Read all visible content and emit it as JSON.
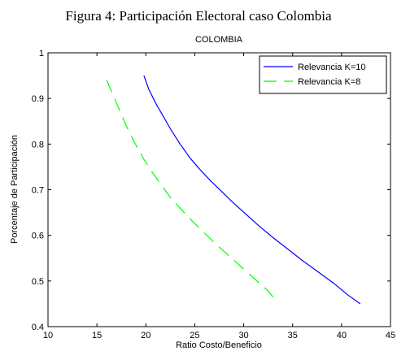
{
  "figure_caption": "Figura 4: Participación Electoral caso Colombia",
  "chart_data": {
    "type": "line",
    "title": "COLOMBIA",
    "xlabel": "Ratio Costo/Beneficio",
    "ylabel": "Porcentaje de Participación",
    "xlim": [
      10,
      45
    ],
    "ylim": [
      0.4,
      1.0
    ],
    "xticks": [
      10,
      15,
      20,
      25,
      30,
      35,
      40,
      45
    ],
    "yticks": [
      0.4,
      0.5,
      0.6,
      0.7,
      0.8,
      0.9,
      1.0
    ],
    "xtick_labels": [
      "10",
      "15",
      "20",
      "25",
      "30",
      "35",
      "40",
      "45"
    ],
    "ytick_labels": [
      "0.4",
      "0.5",
      "0.6",
      "0.7",
      "0.8",
      "0.9",
      "1"
    ],
    "grid": false,
    "legend": "top-right",
    "series": [
      {
        "name": "Relevancia K=10",
        "color": "#0000ff",
        "style": "solid",
        "x": [
          19.8,
          20.3,
          21.0,
          21.8,
          22.6,
          23.5,
          24.5,
          25.5,
          26.6,
          27.8,
          29.0,
          30.3,
          31.6,
          33.0,
          34.5,
          36.0,
          37.6,
          39.2,
          40.6,
          41.9
        ],
        "y": [
          0.95,
          0.92,
          0.89,
          0.86,
          0.83,
          0.8,
          0.77,
          0.745,
          0.72,
          0.695,
          0.67,
          0.645,
          0.62,
          0.595,
          0.57,
          0.545,
          0.52,
          0.495,
          0.47,
          0.45
        ]
      },
      {
        "name": "Relevancia K=8",
        "color": "#00ff00",
        "style": "dashed",
        "x": [
          16.0,
          16.6,
          17.3,
          18.0,
          18.8,
          19.7,
          20.6,
          21.6,
          22.6,
          23.7,
          24.8,
          26.0,
          27.2,
          28.5,
          29.8,
          31.1,
          32.4,
          33.4
        ],
        "y": [
          0.94,
          0.91,
          0.875,
          0.84,
          0.805,
          0.77,
          0.74,
          0.71,
          0.68,
          0.655,
          0.63,
          0.605,
          0.58,
          0.555,
          0.53,
          0.505,
          0.48,
          0.455
        ]
      }
    ]
  }
}
